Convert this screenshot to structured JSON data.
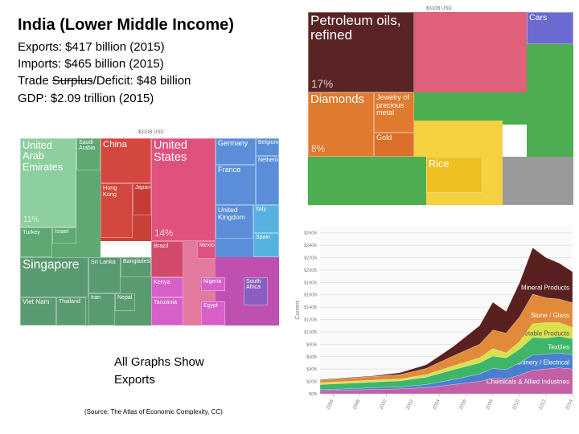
{
  "slide": {
    "title": "India (Lower Middle Income)",
    "exports": "Exports:  $417 billion (2015)",
    "imports": "Imports: $465 billion (2015)",
    "trade": {
      "prefix": "Trade ",
      "struck": "Surplus",
      "suffix": "/Deficit: $48 billion"
    },
    "gdp": "GDP: $2.09 trillion (2015)",
    "note": [
      "All Graphs Show",
      "Exports"
    ],
    "source": "(Source: The Atlas of Economic Complexity, CC)"
  },
  "destinations": {
    "total": "$310B USD",
    "tiles": [
      {
        "label": "United Arab Emirates",
        "share": "11%",
        "color": "#8ecf9f"
      },
      {
        "label": "Saudi Arabia",
        "color": "#5fa872"
      },
      {
        "label": "China",
        "color": "#d4473f"
      },
      {
        "label": "Hong Kong",
        "color": "#d4473f"
      },
      {
        "label": "Japan",
        "color": "#c43c35"
      },
      {
        "label": "United States",
        "share": "14%",
        "color": "#e0527e"
      },
      {
        "label": "Germany",
        "color": "#5b8ed8"
      },
      {
        "label": "Belgium",
        "color": "#5b8ed8"
      },
      {
        "label": "France",
        "color": "#5b8ed8"
      },
      {
        "label": "Netherlands",
        "color": "#5b8ed8"
      },
      {
        "label": "United Kingdom",
        "color": "#5b8ed8"
      },
      {
        "label": "Italy",
        "color": "#56b2e0"
      },
      {
        "label": "Spain",
        "color": "#56b2e0"
      },
      {
        "label": "Turkey",
        "color": "#5fa872"
      },
      {
        "label": "Israel",
        "color": "#5fa872"
      },
      {
        "label": "Singapore",
        "color": "#5a9a70"
      },
      {
        "label": "Sri Lanka",
        "color": "#5a9a70"
      },
      {
        "label": "Bangladesh",
        "color": "#5a9a70"
      },
      {
        "label": "Brazil",
        "color": "#d24a6a"
      },
      {
        "label": "Mexico",
        "color": "#e0527e"
      },
      {
        "label": "Kenya",
        "color": "#d660c8"
      },
      {
        "label": "Tanzania",
        "color": "#d660c8"
      },
      {
        "label": "Iran",
        "color": "#5a9a70"
      },
      {
        "label": "Nepal",
        "color": "#5a9a70"
      },
      {
        "label": "Viet Nam",
        "color": "#5a9a70"
      },
      {
        "label": "Thailand",
        "color": "#5a9a70"
      },
      {
        "label": "Egypt",
        "color": "#d660c8"
      },
      {
        "label": "South Africa",
        "color": "#8a5fc0"
      },
      {
        "label": "Nigeria",
        "color": "#d660c8"
      }
    ]
  },
  "products": {
    "total": "$310B USD",
    "tiles": [
      {
        "label": "Petroleum oils, refined",
        "share": "17%",
        "color": "#5a2424"
      },
      {
        "label": "Diamonds",
        "share": "8%",
        "color": "#e07a2e"
      },
      {
        "label": "Jewelry of precious metal",
        "color": "#e07a2e"
      },
      {
        "label": "Gold",
        "color": "#d8702a"
      },
      {
        "label": "Rice",
        "color": "#f0c020"
      },
      {
        "label": "Cars",
        "color": "#6a6ad0"
      }
    ]
  },
  "chart_data": {
    "type": "area",
    "ylabel": "Current",
    "x": [
      1995,
      1997,
      1999,
      2001,
      2003,
      2005,
      2007,
      2008,
      2009,
      2010,
      2011,
      2012,
      2013,
      2014
    ],
    "xlim": [
      1995,
      2014
    ],
    "xticks": [
      1996,
      1998,
      2000,
      2002,
      2004,
      2006,
      2008,
      2010,
      2012,
      2014
    ],
    "ylim": [
      0,
      270
    ],
    "yticks": [
      {
        "value": 0,
        "label": "$0B"
      },
      {
        "value": 20,
        "label": "$20B"
      },
      {
        "value": 40,
        "label": "$40B"
      },
      {
        "value": 60,
        "label": "$60B"
      },
      {
        "value": 80,
        "label": "$80B"
      },
      {
        "value": 100,
        "label": "$100B"
      },
      {
        "value": 120,
        "label": "$120B"
      },
      {
        "value": 140,
        "label": "$140B"
      },
      {
        "value": 160,
        "label": "$160B"
      },
      {
        "value": 180,
        "label": "$180B"
      },
      {
        "value": 200,
        "label": "$200B"
      },
      {
        "value": 220,
        "label": "$220B"
      },
      {
        "value": 240,
        "label": "$240B"
      },
      {
        "value": 260,
        "label": "$260B"
      }
    ],
    "series": [
      {
        "name": "Chemicals & Allied Industries",
        "color": "#c45fa6",
        "values": [
          5,
          6,
          7,
          8,
          10,
          15,
          20,
          25,
          24,
          30,
          38,
          40,
          42,
          40
        ]
      },
      {
        "name": "Machinery / Electrical",
        "color": "#4a7fd0",
        "values": [
          2,
          2,
          3,
          3,
          5,
          8,
          12,
          16,
          15,
          20,
          25,
          24,
          24,
          23
        ]
      },
      {
        "name": "Textiles",
        "color": "#3fb56a",
        "values": [
          8,
          9,
          9,
          10,
          12,
          16,
          18,
          20,
          19,
          22,
          28,
          26,
          27,
          26
        ]
      },
      {
        "name": "Vegetable Products",
        "color": "#d9e04a",
        "values": [
          3,
          3,
          3,
          3,
          4,
          6,
          8,
          12,
          8,
          12,
          22,
          25,
          22,
          18
        ]
      },
      {
        "name": "Stone / Glass",
        "color": "#e08a3a",
        "values": [
          4,
          5,
          6,
          7,
          10,
          16,
          22,
          30,
          32,
          40,
          48,
          40,
          38,
          40
        ]
      },
      {
        "name": "Mineral Products",
        "color": "#5a2020",
        "values": [
          1,
          1,
          1,
          3,
          6,
          15,
          30,
          45,
          35,
          55,
          75,
          65,
          58,
          50
        ]
      }
    ]
  }
}
